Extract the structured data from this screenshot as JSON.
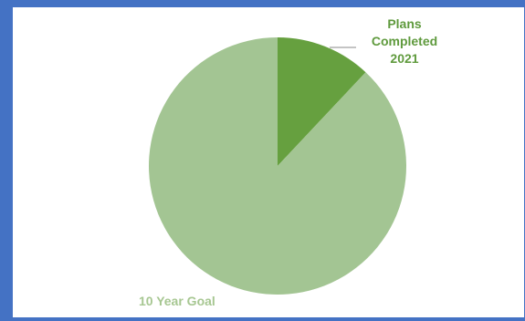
{
  "chart_data": {
    "type": "pie",
    "title": "",
    "slices": [
      {
        "label": "Plans Completed 2021",
        "value": 12,
        "color": "#66a03f"
      },
      {
        "label": "10 Year Goal",
        "value": 88,
        "color": "#a3c593"
      }
    ]
  },
  "colors": {
    "frame": "#4472c4",
    "panel": "#ffffff"
  }
}
